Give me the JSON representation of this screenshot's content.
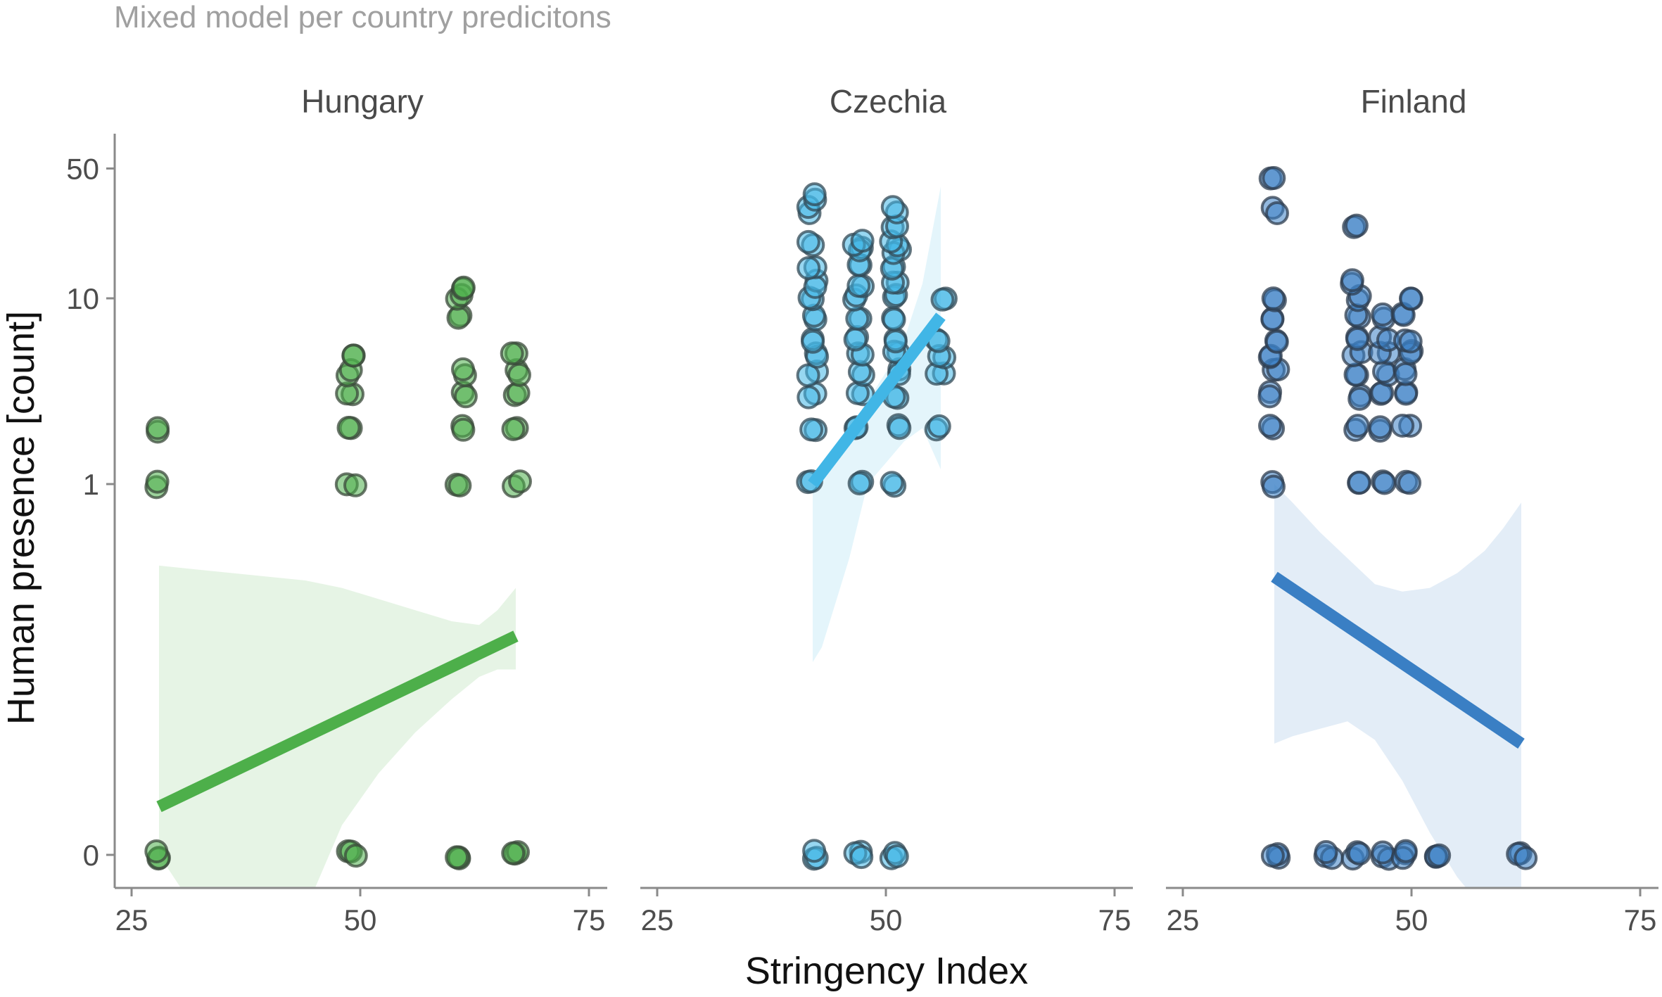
{
  "chart_data": {
    "type": "scatter",
    "subtitle": "Mixed model per country predicitons",
    "xlabel": "Stringency Index",
    "ylabel": "Human presence [count]",
    "y_scale": "pseudo-log",
    "xlim": [
      23,
      78
    ],
    "x_ticks": [
      25,
      50,
      75
    ],
    "y_ticks": [
      0,
      1,
      10,
      50
    ],
    "grid": false,
    "legend": "none",
    "panels": [
      {
        "name": "Hungary",
        "color": "#4daf4a",
        "edge_color": "#3b4a3b",
        "fit_line": {
          "x": [
            28,
            67
          ],
          "y": [
            0.13,
            0.59
          ]
        },
        "ci_band": {
          "x": [
            28,
            32,
            36,
            40,
            44,
            48,
            52,
            56,
            60,
            63,
            65,
            67
          ],
          "lower": [
            0.0,
            -0.15,
            -0.22,
            -0.2,
            -0.15,
            0.08,
            0.22,
            0.33,
            0.42,
            0.48,
            0.5,
            0.5
          ],
          "upper": [
            0.78,
            0.77,
            0.76,
            0.75,
            0.74,
            0.72,
            0.69,
            0.66,
            0.63,
            0.62,
            0.66,
            0.72
          ]
        },
        "points": [
          {
            "x": 28,
            "y": [
              0,
              1,
              2
            ]
          },
          {
            "x": 49,
            "y": [
              0,
              1,
              2,
              3,
              4,
              5
            ]
          },
          {
            "x": 61,
            "y": [
              0,
              1,
              2,
              3,
              4,
              8,
              10,
              11
            ]
          },
          {
            "x": 67,
            "y": [
              0,
              1,
              2,
              3,
              4,
              5
            ]
          }
        ]
      },
      {
        "name": "Czechia",
        "color": "#41b6e6",
        "edge_color": "#334a55",
        "fit_line": {
          "x": [
            42,
            56
          ],
          "y": [
            1.0,
            8.0
          ]
        },
        "ci_band": {
          "x": [
            42,
            43,
            44,
            46,
            48,
            50,
            52,
            54,
            56
          ],
          "lower": [
            0.52,
            0.56,
            0.64,
            0.8,
            1.0,
            1.3,
            1.7,
            2.0,
            1.2
          ],
          "upper": [
            1.1,
            1.25,
            1.45,
            2.0,
            2.8,
            4.0,
            6.0,
            12.0,
            40.0
          ]
        },
        "points": [
          {
            "x": 42,
            "y": [
              0,
              1,
              2,
              3,
              4,
              5,
              6,
              8,
              10,
              12,
              15,
              20,
              30,
              35
            ]
          },
          {
            "x": 47,
            "y": [
              0,
              1,
              2,
              3,
              4,
              5,
              6,
              8,
              10,
              12,
              15,
              18,
              20
            ]
          },
          {
            "x": 51,
            "y": [
              0,
              1,
              2,
              3,
              4,
              5,
              6,
              8,
              10,
              12,
              15,
              18,
              20,
              25,
              30
            ]
          },
          {
            "x": 56,
            "y": [
              2,
              4,
              5,
              6,
              10
            ]
          }
        ]
      },
      {
        "name": "Finland",
        "color": "#3a7fc4",
        "edge_color": "#2f3e4f",
        "fit_line": {
          "x": [
            35,
            62
          ],
          "y": [
            0.75,
            0.3
          ]
        },
        "ci_band": {
          "x": [
            35,
            37,
            40,
            43,
            46,
            49,
            52,
            55,
            58,
            60,
            62
          ],
          "lower": [
            0.3,
            0.32,
            0.34,
            0.36,
            0.31,
            0.2,
            0.06,
            -0.06,
            -0.15,
            -0.25,
            -0.35
          ],
          "upper": [
            1.0,
            0.95,
            0.87,
            0.8,
            0.73,
            0.71,
            0.72,
            0.76,
            0.82,
            0.88,
            0.95
          ]
        },
        "points": [
          {
            "x": 35,
            "y": [
              0,
              1,
              2,
              3,
              4,
              5,
              6,
              8,
              10,
              30,
              45
            ]
          },
          {
            "x": 41,
            "y": [
              0
            ]
          },
          {
            "x": 44,
            "y": [
              0,
              1,
              2,
              3,
              4,
              5,
              6,
              8,
              10,
              12,
              25
            ]
          },
          {
            "x": 47,
            "y": [
              0,
              1,
              2,
              3,
              4,
              5,
              6,
              8
            ]
          },
          {
            "x": 49.5,
            "y": [
              0,
              1,
              2,
              3,
              4,
              5,
              6,
              8,
              10
            ]
          },
          {
            "x": 53,
            "y": [
              0
            ]
          },
          {
            "x": 62,
            "y": [
              0
            ]
          }
        ]
      }
    ]
  }
}
